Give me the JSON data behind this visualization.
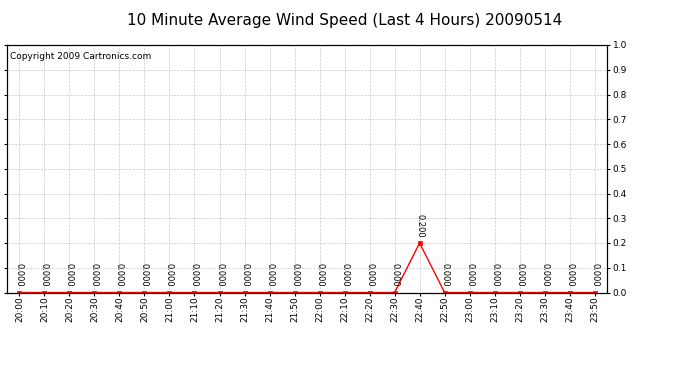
{
  "title": "10 Minute Average Wind Speed (Last 4 Hours) 20090514",
  "copyright_text": "Copyright 2009 Cartronics.com",
  "background_color": "#ffffff",
  "plot_bg_color": "#ffffff",
  "grid_color": "#bbbbbb",
  "line_color": "#ff0000",
  "marker_color": "#ff0000",
  "text_color": "#000000",
  "x_labels": [
    "20:00",
    "20:10",
    "20:20",
    "20:30",
    "20:40",
    "20:50",
    "21:00",
    "21:10",
    "21:20",
    "21:30",
    "21:40",
    "21:50",
    "22:00",
    "22:10",
    "22:20",
    "22:30",
    "22:40",
    "22:50",
    "23:00",
    "23:10",
    "23:20",
    "23:30",
    "23:40",
    "23:50"
  ],
  "y_values": [
    0.0,
    0.0,
    0.0,
    0.0,
    0.0,
    0.0,
    0.0,
    0.0,
    0.0,
    0.0,
    0.0,
    0.0,
    0.0,
    0.0,
    0.0,
    0.0,
    0.2,
    0.0,
    0.0,
    0.0,
    0.0,
    0.0,
    0.0,
    0.0
  ],
  "ylim": [
    0.0,
    1.0
  ],
  "yticks": [
    0.0,
    0.1,
    0.2,
    0.3,
    0.4,
    0.5,
    0.6,
    0.7,
    0.8,
    0.9,
    1.0
  ],
  "title_fontsize": 11,
  "tick_fontsize": 6.5,
  "label_fontsize": 6,
  "copyright_fontsize": 6.5
}
